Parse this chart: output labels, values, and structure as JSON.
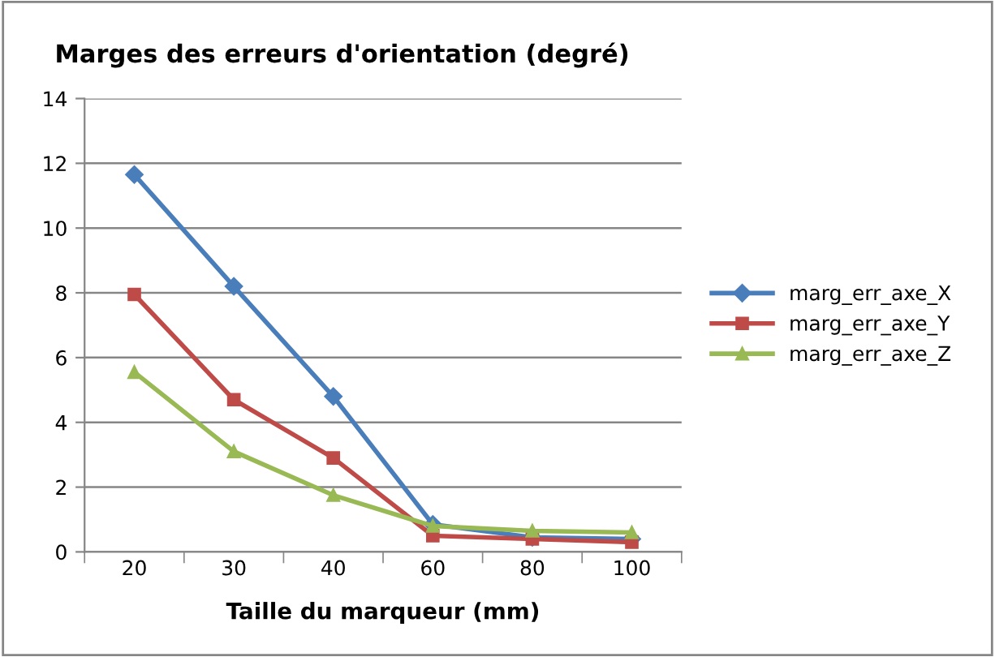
{
  "chart_data": {
    "type": "line",
    "title": "Marges des erreurs d'orientation (degré)",
    "xlabel": "Taille du marqueur (mm)",
    "categories": [
      "20",
      "30",
      "40",
      "60",
      "80",
      "100"
    ],
    "series": [
      {
        "name": "marg_err_axe_X",
        "color": "#4a7ebb",
        "marker": "diamond",
        "values": [
          11.65,
          8.2,
          4.8,
          0.85,
          0.45,
          0.4
        ]
      },
      {
        "name": "marg_err_axe_Y",
        "color": "#be4b48",
        "marker": "square",
        "values": [
          7.95,
          4.7,
          2.9,
          0.5,
          0.4,
          0.3
        ]
      },
      {
        "name": "marg_err_axe_Z",
        "color": "#98b954",
        "marker": "triangle",
        "values": [
          5.55,
          3.1,
          1.75,
          0.8,
          0.65,
          0.6
        ]
      }
    ],
    "ylim": [
      0,
      14
    ],
    "yticks": [
      0,
      2,
      4,
      6,
      8,
      10,
      12,
      14
    ],
    "grid": "y",
    "legend": "right",
    "line_style": "solid"
  }
}
